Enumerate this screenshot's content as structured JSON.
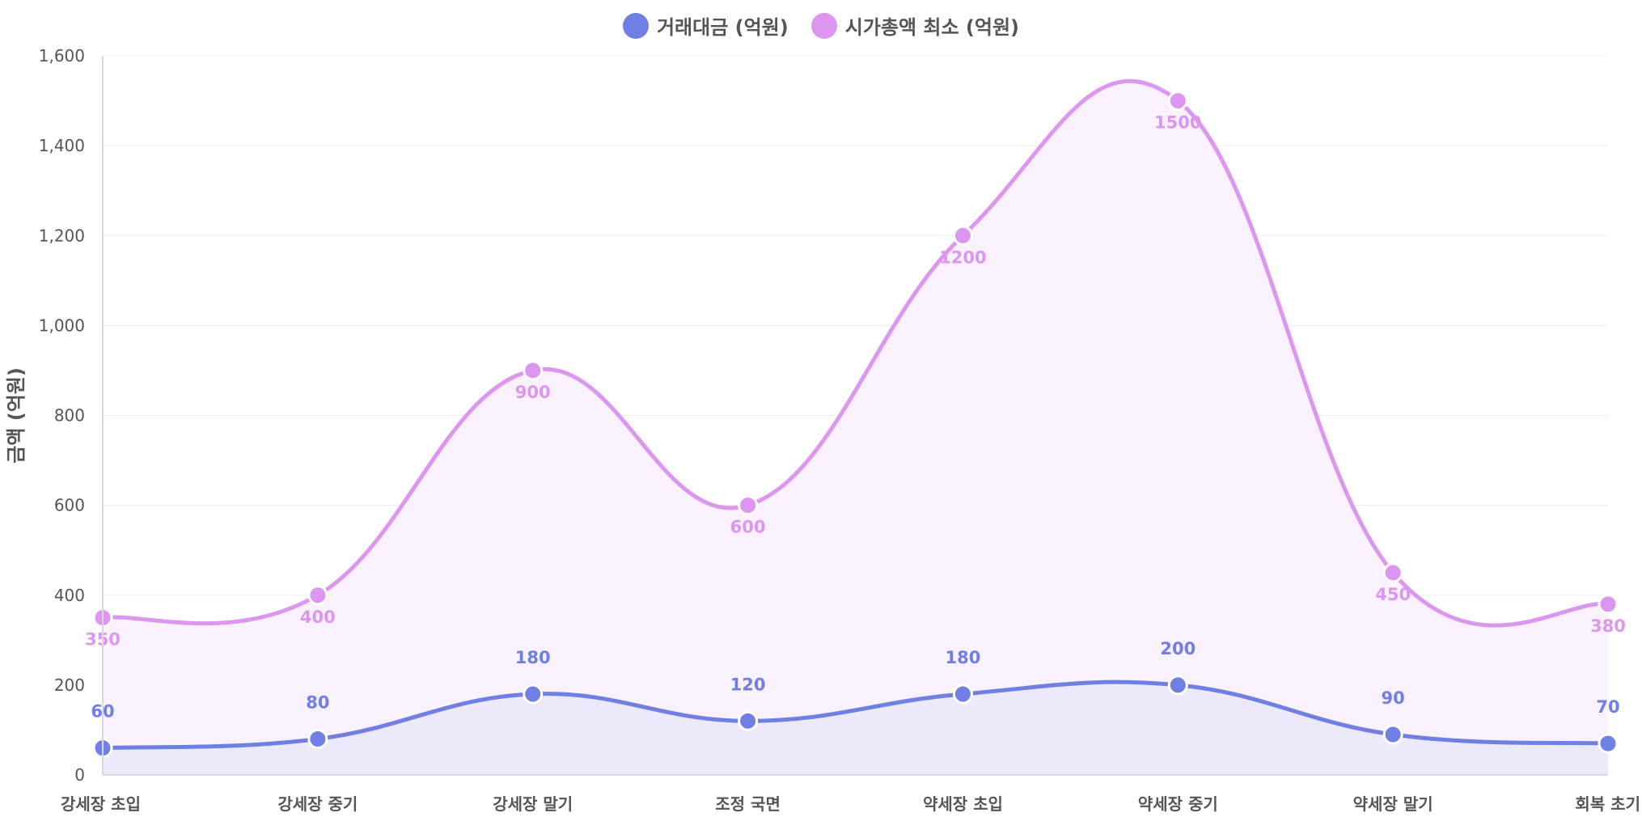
{
  "chart_data": {
    "type": "line",
    "categories": [
      "강세장 초입",
      "강세장 중기",
      "강세장 말기",
      "조정 국면",
      "약세장 초입",
      "약세장 중기",
      "약세장 말기",
      "회복 초기"
    ],
    "series": [
      {
        "name": "거래대금 (억원)",
        "values": [
          60,
          80,
          180,
          120,
          180,
          200,
          90,
          70
        ],
        "color": "#6f7fe3",
        "fill": "#ece9fb"
      },
      {
        "name": "시가총액 최소 (억원)",
        "values": [
          350,
          400,
          900,
          600,
          1200,
          1500,
          450,
          380
        ],
        "color": "#dd96f0",
        "fill": "#f9f1fd"
      }
    ],
    "ylabel": "금액 (억원)",
    "ylim": [
      0,
      1600
    ],
    "yticks": [
      "0",
      "200",
      "400",
      "600",
      "800",
      "1,000",
      "1,200",
      "1,400",
      "1,600"
    ],
    "grid": true,
    "legend_position": "top-center",
    "smooth": true
  }
}
